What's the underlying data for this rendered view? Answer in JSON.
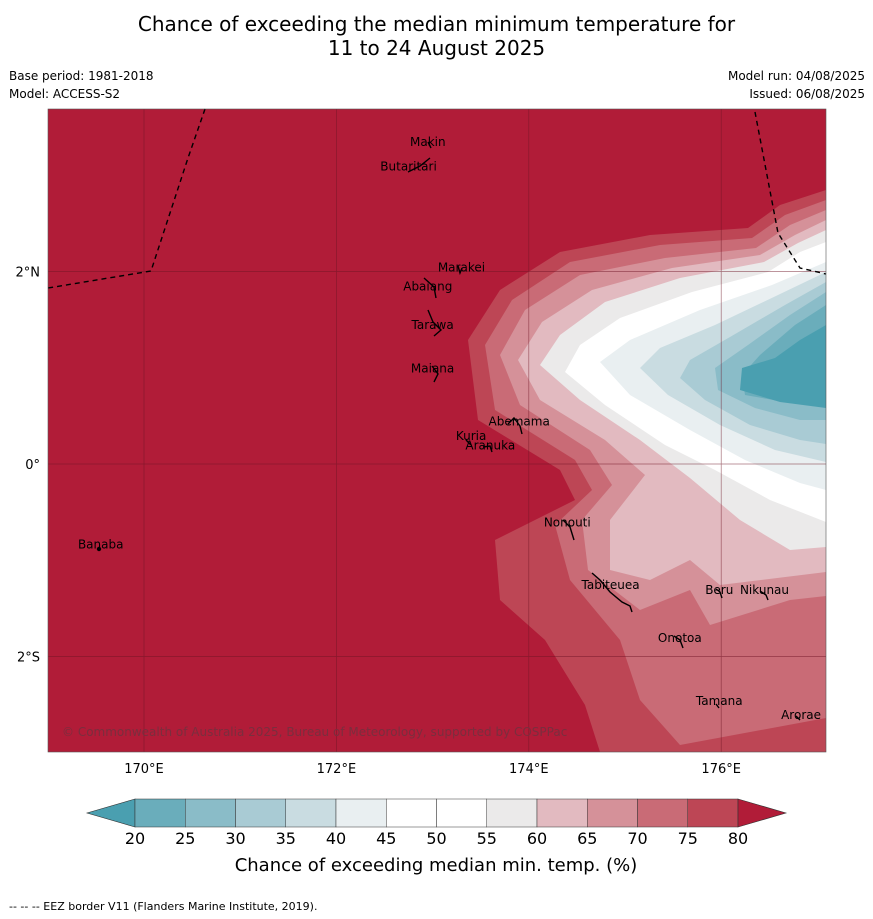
{
  "title": {
    "line1": "Chance of exceeding the median minimum temperature for",
    "line2": "11 to 24 August 2025"
  },
  "meta": {
    "base_period": "Base period: 1981-2018",
    "model": "Model: ACCESS-S2",
    "model_run": "Model run: 04/08/2025",
    "issued": "Issued: 06/08/2025"
  },
  "map": {
    "copyright": "© Commonwealth of Australia 2025, Bureau of Meteorology, supported by COSPPac",
    "lon_ticks": [
      "170°E",
      "172°E",
      "174°E",
      "176°E"
    ],
    "lat_ticks": [
      "2°N",
      "0°",
      "2°S"
    ],
    "islands": [
      {
        "name": "Makin",
        "lon": 172.95,
        "lat": 3.3
      },
      {
        "name": "Butaritari",
        "lon": 172.75,
        "lat": 3.05
      },
      {
        "name": "Marakei",
        "lon": 173.3,
        "lat": 2.0
      },
      {
        "name": "Abaiang",
        "lon": 172.95,
        "lat": 1.8
      },
      {
        "name": "Tarawa",
        "lon": 173.0,
        "lat": 1.4
      },
      {
        "name": "Maiana",
        "lon": 173.0,
        "lat": 0.95
      },
      {
        "name": "Abemama",
        "lon": 173.9,
        "lat": 0.4
      },
      {
        "name": "Kuria",
        "lon": 173.4,
        "lat": 0.25
      },
      {
        "name": "Aranuka",
        "lon": 173.6,
        "lat": 0.15
      },
      {
        "name": "Nonouti",
        "lon": 174.4,
        "lat": -0.65
      },
      {
        "name": "Banaba",
        "lon": 169.55,
        "lat": -0.88
      },
      {
        "name": "Tabiteuea",
        "lon": 174.85,
        "lat": -1.3
      },
      {
        "name": "Beru",
        "lon": 175.98,
        "lat": -1.35
      },
      {
        "name": "Nikunau",
        "lon": 176.45,
        "lat": -1.35
      },
      {
        "name": "Onotoa",
        "lon": 175.57,
        "lat": -1.85
      },
      {
        "name": "Tamana",
        "lon": 175.98,
        "lat": -2.5
      },
      {
        "name": "Arorae",
        "lon": 176.83,
        "lat": -2.65
      }
    ]
  },
  "colorbar": {
    "label": "Chance of exceeding median min. temp. (%)",
    "ticks": [
      "20",
      "25",
      "30",
      "35",
      "40",
      "45",
      "50",
      "55",
      "60",
      "65",
      "70",
      "75",
      "80"
    ],
    "colors": [
      "#6aadbb",
      "#8abcc8",
      "#a9cbd4",
      "#c9dce1",
      "#e9eff1",
      "#ffffff",
      "#ffffff",
      "#ebeaea",
      "#e2bac0",
      "#d59199",
      "#c96b76",
      "#bd4655"
    ],
    "under_color": "#4a9fb0",
    "over_color": "#b11c38"
  },
  "credit": "--  --  -- EEZ border V11 (Flanders Marine Institute, 2019)."
}
